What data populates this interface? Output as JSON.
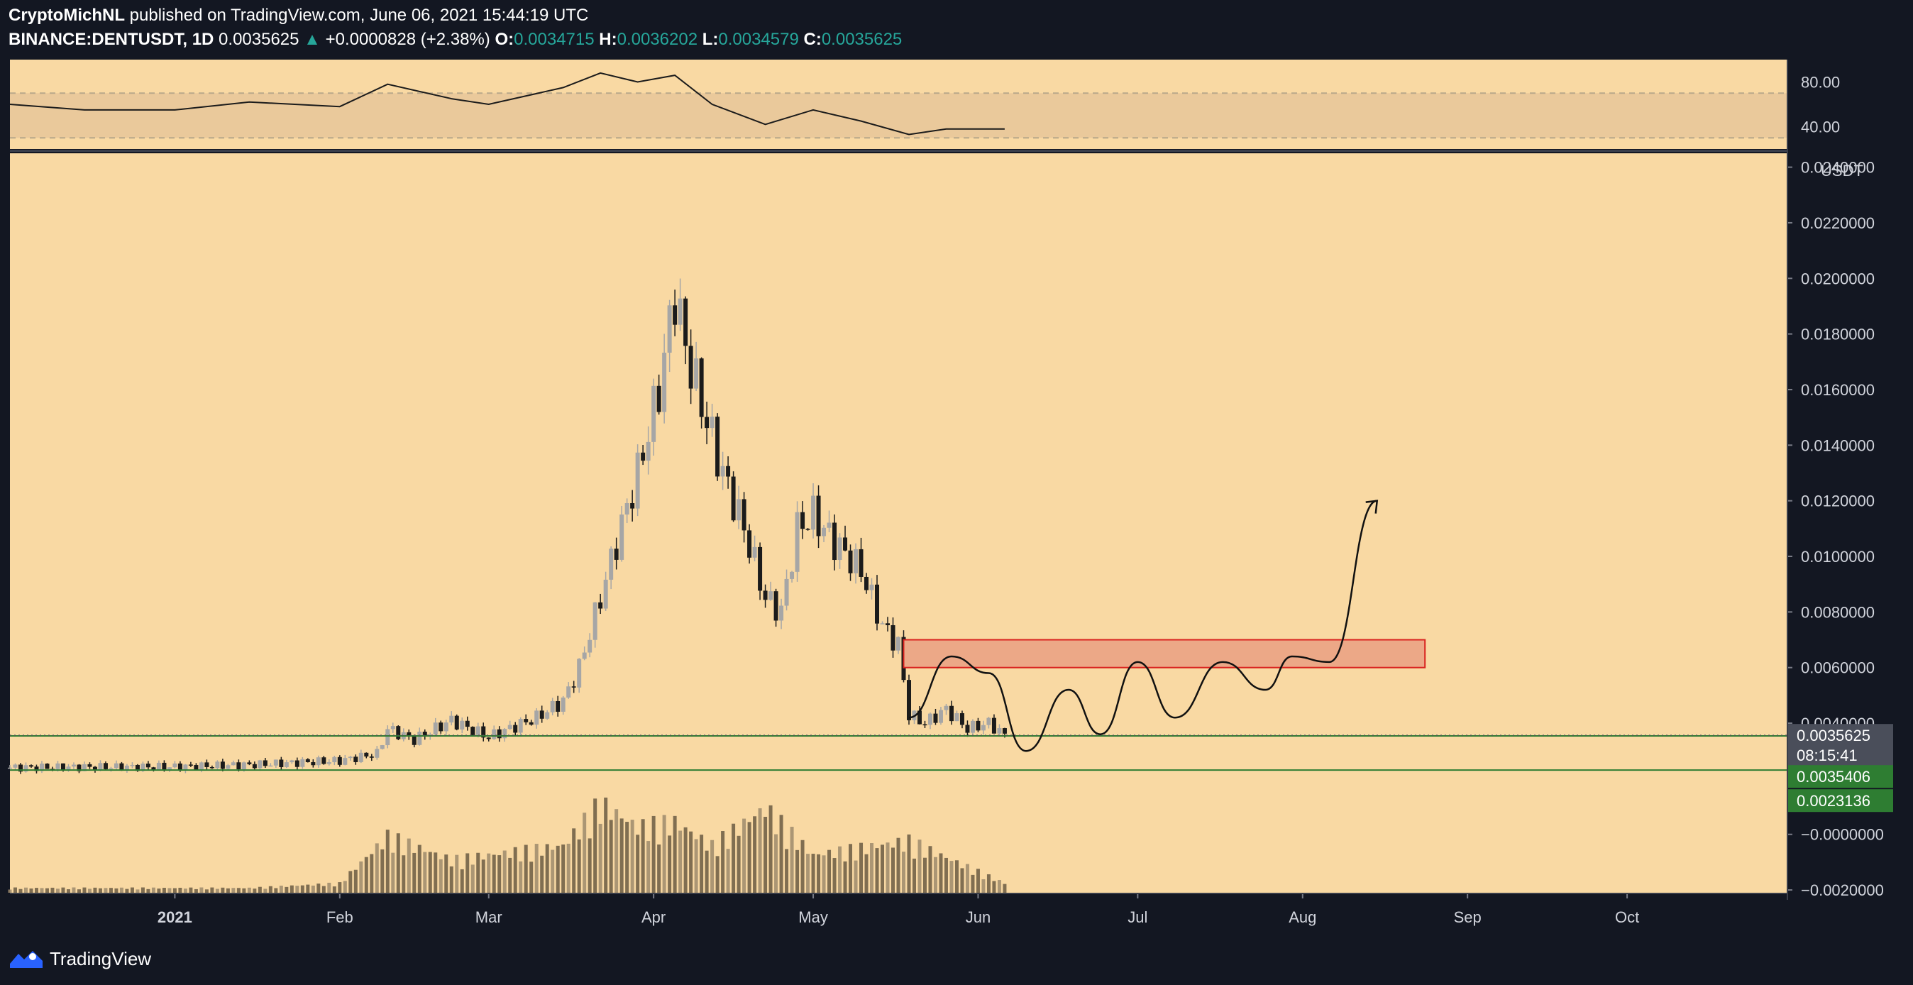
{
  "header": {
    "author": "CryptoMichNL",
    "published_text": "published on TradingView.com, June 06, 2021 15:44:19 UTC",
    "symbol": "BINANCE:DENTUSDT",
    "interval": "1D",
    "last": "0.0035625",
    "change": "+0.0000828 (+2.38%)",
    "o_label": "O:",
    "o_value": "0.0034715",
    "h_label": "H:",
    "h_value": "0.0036202",
    "l_label": "L:",
    "l_value": "0.0034579",
    "c_label": "C:",
    "c_value": "0.0035625"
  },
  "brand": "TradingView",
  "colors": {
    "page": "#131722",
    "pane": "#f9d9a3",
    "rsi_band": "#eac99b",
    "zone": "#eca887",
    "zone_border": "#d9231f",
    "support": "#2e7d32",
    "candle_up": "#a6a6a6",
    "candle_down": "#1b1b1b"
  },
  "price_axis": {
    "currency": "USDT",
    "ticks": [
      "0.0240000",
      "0.0220000",
      "0.0200000",
      "0.0180000",
      "0.0160000",
      "0.0140000",
      "0.0120000",
      "0.0100000",
      "0.0080000",
      "0.0060000",
      "0.0040000",
      "−0.0000000",
      "−0.0020000"
    ],
    "current_price": "0.0035625",
    "countdown": "08:15:41",
    "support_1": "0.0035406",
    "support_2": "0.0023136"
  },
  "rsi_axis": {
    "ticks": [
      "80.00",
      "40.00"
    ]
  },
  "time_axis": {
    "labels": [
      "2021",
      "Feb",
      "Mar",
      "Apr",
      "May",
      "Jun",
      "Jul",
      "Aug",
      "Sep",
      "Oct"
    ]
  },
  "chart_data": {
    "type": "candlestick",
    "ylim": [
      -0.0021,
      0.0245
    ],
    "x_range": [
      "2020-12-01",
      "2021-10-31"
    ],
    "rsi_range": [
      20,
      100
    ],
    "rsi_levels": [
      70,
      30
    ],
    "price_series": [
      {
        "date": "2020-12-01",
        "close": 0.0024
      },
      {
        "date": "2020-12-15",
        "close": 0.00242
      },
      {
        "date": "2021-01-01",
        "close": 0.00243
      },
      {
        "date": "2021-01-15",
        "close": 0.0025
      },
      {
        "date": "2021-02-01",
        "close": 0.00265
      },
      {
        "date": "2021-02-08",
        "close": 0.0029
      },
      {
        "date": "2021-02-10",
        "close": 0.0038
      },
      {
        "date": "2021-02-15",
        "close": 0.0034
      },
      {
        "date": "2021-02-22",
        "close": 0.0041
      },
      {
        "date": "2021-03-01",
        "close": 0.0035
      },
      {
        "date": "2021-03-10",
        "close": 0.0042
      },
      {
        "date": "2021-03-15",
        "close": 0.0048
      },
      {
        "date": "2021-03-18",
        "close": 0.006
      },
      {
        "date": "2021-03-22",
        "close": 0.0085
      },
      {
        "date": "2021-03-25",
        "close": 0.0105
      },
      {
        "date": "2021-03-29",
        "close": 0.013
      },
      {
        "date": "2021-04-02",
        "close": 0.016
      },
      {
        "date": "2021-04-05",
        "close": 0.0195
      },
      {
        "date": "2021-04-07",
        "close": 0.0175
      },
      {
        "date": "2021-04-10",
        "close": 0.0155
      },
      {
        "date": "2021-04-14",
        "close": 0.013
      },
      {
        "date": "2021-04-18",
        "close": 0.011
      },
      {
        "date": "2021-04-22",
        "close": 0.0085
      },
      {
        "date": "2021-04-25",
        "close": 0.008
      },
      {
        "date": "2021-04-28",
        "close": 0.011
      },
      {
        "date": "2021-05-01",
        "close": 0.0115
      },
      {
        "date": "2021-05-05",
        "close": 0.0105
      },
      {
        "date": "2021-05-10",
        "close": 0.0095
      },
      {
        "date": "2021-05-14",
        "close": 0.0075
      },
      {
        "date": "2021-05-17",
        "close": 0.0068
      },
      {
        "date": "2021-05-19",
        "close": 0.0043
      },
      {
        "date": "2021-05-22",
        "close": 0.004
      },
      {
        "date": "2021-05-26",
        "close": 0.0045
      },
      {
        "date": "2021-05-30",
        "close": 0.0038
      },
      {
        "date": "2021-06-03",
        "close": 0.004
      },
      {
        "date": "2021-06-06",
        "close": 0.00356
      }
    ],
    "volume_series": [
      {
        "date": "2021-01-15",
        "value": 0.05
      },
      {
        "date": "2021-02-01",
        "value": 0.1
      },
      {
        "date": "2021-02-10",
        "value": 0.6
      },
      {
        "date": "2021-02-22",
        "value": 0.35
      },
      {
        "date": "2021-03-15",
        "value": 0.5
      },
      {
        "date": "2021-03-22",
        "value": 0.95
      },
      {
        "date": "2021-03-29",
        "value": 0.7
      },
      {
        "date": "2021-04-05",
        "value": 0.75
      },
      {
        "date": "2021-04-12",
        "value": 0.5
      },
      {
        "date": "2021-04-22",
        "value": 0.9
      },
      {
        "date": "2021-05-01",
        "value": 0.4
      },
      {
        "date": "2021-05-19",
        "value": 0.55
      },
      {
        "date": "2021-06-06",
        "value": 0.1
      }
    ],
    "rsi_series": [
      {
        "date": "2020-12-01",
        "value": 60
      },
      {
        "date": "2020-12-15",
        "value": 55
      },
      {
        "date": "2021-01-01",
        "value": 55
      },
      {
        "date": "2021-01-15",
        "value": 62
      },
      {
        "date": "2021-02-01",
        "value": 58
      },
      {
        "date": "2021-02-10",
        "value": 78
      },
      {
        "date": "2021-02-22",
        "value": 65
      },
      {
        "date": "2021-03-01",
        "value": 60
      },
      {
        "date": "2021-03-15",
        "value": 75
      },
      {
        "date": "2021-03-22",
        "value": 88
      },
      {
        "date": "2021-03-29",
        "value": 80
      },
      {
        "date": "2021-04-05",
        "value": 86
      },
      {
        "date": "2021-04-12",
        "value": 60
      },
      {
        "date": "2021-04-22",
        "value": 42
      },
      {
        "date": "2021-05-01",
        "value": 55
      },
      {
        "date": "2021-05-10",
        "value": 45
      },
      {
        "date": "2021-05-19",
        "value": 33
      },
      {
        "date": "2021-05-26",
        "value": 38
      },
      {
        "date": "2021-06-06",
        "value": 38
      }
    ],
    "support_levels": [
      0.0035406,
      0.0023136
    ],
    "current_price": 0.0035625,
    "resistance_zone": {
      "from_date": "2021-05-18",
      "to_date": "2021-08-24",
      "low": 0.006,
      "high": 0.007
    },
    "projection_path": [
      {
        "date": "2021-05-19",
        "price": 0.0042
      },
      {
        "date": "2021-05-27",
        "price": 0.0064
      },
      {
        "date": "2021-06-03",
        "price": 0.0058
      },
      {
        "date": "2021-06-10",
        "price": 0.003
      },
      {
        "date": "2021-06-18",
        "price": 0.0052
      },
      {
        "date": "2021-06-24",
        "price": 0.0036
      },
      {
        "date": "2021-07-01",
        "price": 0.0062
      },
      {
        "date": "2021-07-08",
        "price": 0.0042
      },
      {
        "date": "2021-07-17",
        "price": 0.0062
      },
      {
        "date": "2021-07-25",
        "price": 0.0052
      },
      {
        "date": "2021-07-30",
        "price": 0.0064
      },
      {
        "date": "2021-08-06",
        "price": 0.0062
      },
      {
        "date": "2021-08-15",
        "price": 0.012
      }
    ]
  }
}
